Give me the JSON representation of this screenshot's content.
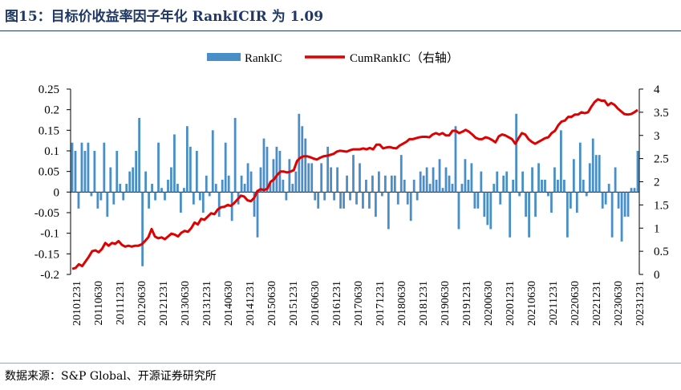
{
  "title": "图15：目标价收益率因子年化 RankICIR 为 1.09",
  "source": "数据来源：S&P Global、开源证券研究所",
  "chart_data": {
    "type": "bar+line",
    "title": "图15：目标价收益率因子年化 RankICIR 为 1.09",
    "legend_position": "top-center",
    "grid": false,
    "left_axis": {
      "ylim": [
        -0.2,
        0.25
      ],
      "ticks": [
        "0.25",
        "0.2",
        "0.15",
        "0.1",
        "0.05",
        "0",
        "-0.05",
        "-0.1",
        "-0.15",
        "-0.2"
      ]
    },
    "right_axis": {
      "ylim": [
        0,
        4
      ],
      "ticks": [
        "4",
        "3.5",
        "3",
        "2.5",
        "2",
        "1.5",
        "1",
        "0.5",
        "0"
      ]
    },
    "x_tick_labels": [
      "20101231",
      "20110630",
      "20111231",
      "20120630",
      "20121231",
      "20130630",
      "20131231",
      "20140630",
      "20141231",
      "20150630",
      "20151231",
      "20160630",
      "20161231",
      "20170630",
      "20171231",
      "20180630",
      "20181231",
      "20190630",
      "20191231",
      "20200630",
      "20201231",
      "20210630",
      "20211231",
      "20220630",
      "20221231",
      "20230630",
      "20231231"
    ],
    "series": [
      {
        "name": "RankIC",
        "type": "bar",
        "axis": "left",
        "color": "#4a8ec8",
        "values": [
          0.12,
          0.1,
          -0.04,
          0.12,
          0.1,
          0.12,
          -0.01,
          0.1,
          -0.04,
          -0.02,
          0.12,
          -0.06,
          0.06,
          -0.03,
          0.1,
          0.02,
          -0.02,
          0.02,
          0.05,
          0.06,
          0.1,
          0.18,
          -0.18,
          0.05,
          -0.04,
          0.02,
          -0.02,
          0.12,
          0.01,
          -0.02,
          0.03,
          0.06,
          0.14,
          0.02,
          -0.05,
          0.01,
          0.16,
          0.11,
          -0.03,
          0.1,
          -0.02,
          -0.05,
          0.04,
          -0.01,
          0.15,
          0.02,
          -0.06,
          0.03,
          0.12,
          0.04,
          -0.07,
          0.18,
          -0.03,
          0.04,
          0.02,
          0.07,
          0.05,
          -0.06,
          -0.11,
          0.06,
          0.13,
          0.11,
          0.02,
          0.08,
          0.11,
          0.1,
          0.03,
          -0.02,
          0.08,
          0.02,
          0.05,
          0.19,
          0.16,
          0.13,
          0.07,
          0.07,
          -0.02,
          -0.04,
          0.07,
          -0.02,
          0.11,
          0.06,
          -0.02,
          0.06,
          -0.04,
          -0.04,
          0.04,
          -0.02,
          0.09,
          -0.03,
          0.07,
          -0.04,
          0.03,
          -0.04,
          0.04,
          -0.06,
          0.05,
          -0.01,
          0.04,
          -0.09,
          0.04,
          0.04,
          -0.03,
          0.09,
          0.03,
          -0.03,
          -0.07,
          0.03,
          -0.02,
          0.05,
          0.04,
          0.06,
          0.02,
          0.06,
          0.03,
          0.08,
          0.01,
          0.06,
          0.04,
          0.02,
          0.16,
          -0.09,
          0.02,
          0.08,
          0.03,
          0.07,
          -0.04,
          -0.04,
          0.05,
          -0.06,
          -0.08,
          -0.09,
          0.02,
          0.05,
          -0.03,
          0.04,
          0.05,
          -0.11,
          0.03,
          0.19,
          -0.01,
          0.05,
          -0.06,
          -0.11,
          0.06,
          -0.06,
          0.07,
          0.03,
          0.03,
          -0.01,
          -0.05,
          0.06,
          0.03,
          0.15,
          0.03,
          -0.11,
          -0.04,
          0.08,
          -0.05,
          0.12,
          0.03,
          -0.01,
          0.07,
          0.13,
          0.09,
          0.09,
          -0.04,
          -0.03,
          0.02,
          -0.11,
          0.06,
          -0.04,
          -0.12,
          -0.06,
          -0.06,
          0.01,
          0.01,
          0.1
        ]
      },
      {
        "name": "CumRankIC（右轴）",
        "type": "line",
        "axis": "right",
        "color": "#e00000",
        "values": [
          0.12,
          0.14,
          0.22,
          0.18,
          0.28,
          0.38,
          0.5,
          0.52,
          0.48,
          0.55,
          0.68,
          0.62,
          0.68,
          0.66,
          0.72,
          0.64,
          0.6,
          0.62,
          0.6,
          0.62,
          0.62,
          0.65,
          0.72,
          0.8,
          0.98,
          0.82,
          0.78,
          0.8,
          0.76,
          0.82,
          0.88,
          0.86,
          0.82,
          0.9,
          0.94,
          0.92,
          1.0,
          1.12,
          1.08,
          1.2,
          1.18,
          1.25,
          1.32,
          1.3,
          1.4,
          1.45,
          1.46,
          1.5,
          1.48,
          1.54,
          1.62,
          1.7,
          1.68,
          1.6,
          1.58,
          1.65,
          1.8,
          1.84,
          1.82,
          1.85,
          2.0,
          2.05,
          2.15,
          2.22,
          2.22,
          2.2,
          2.22,
          2.25,
          2.45,
          2.52,
          2.55,
          2.55,
          2.53,
          2.5,
          2.48,
          2.52,
          2.55,
          2.56,
          2.58,
          2.6,
          2.65,
          2.67,
          2.66,
          2.65,
          2.68,
          2.7,
          2.7,
          2.7,
          2.72,
          2.7,
          2.73,
          2.7,
          2.8,
          2.8,
          2.72,
          2.74,
          2.75,
          2.73,
          2.72,
          2.78,
          2.82,
          2.86,
          2.92,
          2.92,
          2.94,
          2.96,
          2.97,
          2.97,
          2.96,
          3.02,
          3.05,
          3.02,
          3.05,
          3.0,
          3.0,
          3.1,
          3.1,
          3.05,
          3.08,
          3.12,
          3.08,
          3.02,
          2.95,
          2.92,
          2.92,
          2.96,
          2.94,
          2.9,
          2.85,
          2.98,
          3.02,
          3.0,
          2.96,
          2.92,
          2.82,
          2.94,
          3.05,
          3.02,
          2.92,
          2.86,
          2.82,
          2.86,
          2.9,
          2.94,
          2.96,
          3.05,
          3.1,
          3.22,
          3.3,
          3.32,
          3.4,
          3.4,
          3.45,
          3.45,
          3.5,
          3.48,
          3.5,
          3.62,
          3.72,
          3.78,
          3.75,
          3.75,
          3.65,
          3.7,
          3.66,
          3.58,
          3.52,
          3.46,
          3.45,
          3.46,
          3.5,
          3.55
        ]
      }
    ]
  }
}
